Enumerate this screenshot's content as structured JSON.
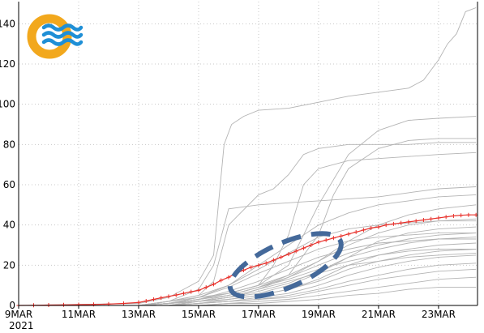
{
  "chart_data": {
    "type": "line",
    "title": "",
    "xlabel": "",
    "ylabel": "",
    "x_tick_labels": [
      "9MAR",
      "11MAR",
      "13MAR",
      "15MAR",
      "17MAR",
      "19MAR",
      "21MAR",
      "23MAR"
    ],
    "x_tick_days": [
      9,
      11,
      13,
      15,
      17,
      19,
      21,
      23
    ],
    "year_label": "2021",
    "xlim": [
      9,
      24.3
    ],
    "y_tick_labels": [
      "0",
      "20",
      "40",
      "60",
      "80",
      "100",
      "120",
      "140"
    ],
    "y_tick_values": [
      0,
      20,
      40,
      60,
      80,
      100,
      120,
      140
    ],
    "ylim": [
      0,
      151
    ],
    "grid": true,
    "series_color_mean": "#e8302a",
    "series_color_members": "#b4b4b4",
    "annotation_color": "#44699a",
    "logo_colors": {
      "ring": "#f2a81d",
      "waves": "#1f8fd6"
    },
    "mean": {
      "x": [
        9,
        9.5,
        10,
        10.5,
        11,
        11.5,
        12,
        12.5,
        13,
        13.25,
        13.5,
        13.75,
        14,
        14.25,
        14.5,
        14.75,
        15,
        15.25,
        15.5,
        15.75,
        16,
        16.25,
        16.5,
        16.75,
        17,
        17.25,
        17.5,
        17.75,
        18,
        18.25,
        18.5,
        18.75,
        19,
        19.25,
        19.5,
        19.75,
        20,
        20.25,
        20.5,
        20.75,
        21,
        21.25,
        21.5,
        21.75,
        22,
        22.25,
        22.5,
        22.75,
        23,
        23.25,
        23.5,
        23.75,
        24,
        24.25
      ],
      "y": [
        0,
        0.1,
        0.2,
        0.3,
        0.4,
        0.5,
        0.7,
        1.0,
        1.5,
        2.2,
        3.0,
        3.8,
        4.5,
        5.2,
        6.0,
        6.8,
        7.5,
        9.0,
        10.5,
        12.5,
        14.0,
        16.0,
        17.5,
        19.0,
        20.0,
        21.0,
        22.5,
        24.0,
        25.5,
        27.0,
        28.5,
        30.0,
        31.5,
        32.5,
        33.5,
        34.5,
        35.5,
        36.5,
        37.5,
        38.5,
        39.0,
        40.0,
        40.5,
        41.0,
        41.5,
        42.0,
        42.5,
        43.0,
        43.5,
        44.0,
        44.5,
        44.8,
        45.0,
        45.0
      ]
    },
    "members": [
      {
        "x": [
          9,
          13,
          14,
          15,
          15.5,
          15.85,
          16.1,
          16.5,
          17,
          18,
          19,
          20,
          21,
          22,
          22.5,
          22.8,
          23,
          23.3,
          23.6,
          23.9,
          24.25
        ],
        "y": [
          0,
          1,
          4,
          12,
          25,
          80,
          90,
          94,
          97,
          98,
          101,
          104,
          106,
          108,
          112,
          118,
          122,
          130,
          135,
          146,
          148
        ]
      },
      {
        "x": [
          9,
          13,
          14,
          15,
          16,
          17,
          18,
          19,
          20,
          21,
          22,
          23,
          24.25
        ],
        "y": [
          0,
          0,
          2,
          4,
          6,
          10,
          20,
          50,
          75,
          87,
          92,
          93,
          94
        ]
      },
      {
        "x": [
          9,
          13,
          14,
          15,
          16,
          17,
          18,
          19,
          19.5,
          20,
          21,
          22,
          23,
          24.25
        ],
        "y": [
          0,
          0,
          1,
          3,
          5,
          9,
          15,
          35,
          55,
          68,
          78,
          82,
          83,
          83
        ]
      },
      {
        "x": [
          9,
          13,
          14,
          15,
          15.5,
          16,
          17,
          17.5,
          18,
          18.5,
          19,
          20,
          21,
          22,
          23,
          24.25
        ],
        "y": [
          0,
          0,
          2,
          5,
          12,
          40,
          55,
          58,
          65,
          75,
          78,
          80,
          80,
          80,
          81,
          81
        ]
      },
      {
        "x": [
          9,
          13,
          14,
          15,
          16,
          17,
          17.5,
          18,
          18.5,
          19,
          20,
          21,
          22,
          23,
          24.25
        ],
        "y": [
          0,
          0,
          1,
          3,
          6,
          10,
          20,
          35,
          60,
          68,
          72,
          73,
          74,
          75,
          76
        ]
      },
      {
        "x": [
          9,
          13,
          14,
          15,
          15.5,
          16,
          17,
          18,
          19,
          20,
          21,
          22,
          23,
          24.25
        ],
        "y": [
          0,
          0,
          2,
          8,
          20,
          48,
          50,
          51,
          52,
          53,
          54,
          56,
          58,
          59
        ]
      },
      {
        "x": [
          9,
          13,
          14,
          15,
          16,
          17,
          18,
          19,
          20,
          21,
          22,
          23,
          24.25
        ],
        "y": [
          0,
          0,
          1,
          4,
          10,
          20,
          30,
          40,
          46,
          50,
          52,
          54,
          55
        ]
      },
      {
        "x": [
          9,
          13,
          14,
          15,
          16,
          17,
          18,
          19,
          20,
          21,
          22,
          23,
          24.25
        ],
        "y": [
          0,
          0,
          1,
          3,
          6,
          10,
          15,
          22,
          32,
          40,
          45,
          48,
          50
        ]
      },
      {
        "x": [
          9,
          13,
          14,
          15,
          16,
          17,
          18,
          19,
          20,
          21,
          22,
          23,
          24.25
        ],
        "y": [
          0,
          0,
          1,
          2,
          4,
          8,
          14,
          22,
          30,
          36,
          40,
          42,
          43
        ]
      },
      {
        "x": [
          9,
          13,
          14,
          15,
          16,
          17,
          18,
          19,
          20,
          21,
          22,
          23,
          24.25
        ],
        "y": [
          0,
          0,
          1,
          2,
          4,
          6,
          10,
          16,
          24,
          32,
          36,
          38,
          39
        ]
      },
      {
        "x": [
          9,
          13,
          14,
          15,
          16,
          17,
          18,
          19,
          20,
          21,
          22,
          23,
          24.25
        ],
        "y": [
          0,
          0,
          1,
          3,
          5,
          9,
          14,
          20,
          26,
          30,
          33,
          35,
          36
        ]
      },
      {
        "x": [
          9,
          13,
          14,
          15,
          16,
          17,
          18,
          19,
          20,
          21,
          22,
          23,
          24.25
        ],
        "y": [
          0,
          0,
          0,
          2,
          4,
          7,
          11,
          17,
          24,
          28,
          31,
          33,
          34
        ]
      },
      {
        "x": [
          9,
          13,
          14,
          15,
          16,
          17,
          18,
          19,
          20,
          21,
          22,
          23,
          24.25
        ],
        "y": [
          0,
          0,
          1,
          2,
          3,
          5,
          8,
          13,
          20,
          25,
          28,
          30,
          31
        ]
      },
      {
        "x": [
          9,
          13,
          14,
          15,
          16,
          17,
          18,
          19,
          20,
          21,
          22,
          23,
          24.25
        ],
        "y": [
          0,
          0,
          0,
          1,
          3,
          5,
          8,
          12,
          18,
          22,
          25,
          27,
          28
        ]
      },
      {
        "x": [
          9,
          13,
          14,
          15,
          16,
          17,
          18,
          19,
          20,
          21,
          22,
          23,
          24.25
        ],
        "y": [
          0,
          0,
          0,
          1,
          2,
          4,
          6,
          10,
          15,
          19,
          22,
          24,
          25
        ]
      },
      {
        "x": [
          9,
          13,
          14,
          15,
          16,
          17,
          18,
          19,
          20,
          21,
          22,
          23,
          24.25
        ],
        "y": [
          0,
          0,
          0,
          1,
          2,
          3,
          5,
          8,
          12,
          15,
          18,
          20,
          21
        ]
      },
      {
        "x": [
          9,
          13,
          14,
          15,
          16,
          17,
          18,
          19,
          20,
          21,
          22,
          23,
          24.25
        ],
        "y": [
          0,
          0,
          0,
          1,
          2,
          3,
          4,
          7,
          10,
          13,
          15,
          17,
          18
        ]
      },
      {
        "x": [
          9,
          13,
          14,
          15,
          16,
          17,
          18,
          19,
          20,
          21,
          22,
          23,
          24.25
        ],
        "y": [
          0,
          0,
          0,
          0,
          1,
          2,
          3,
          5,
          7,
          9,
          11,
          13,
          14
        ]
      },
      {
        "x": [
          9,
          13,
          14,
          15,
          16,
          17,
          18,
          19,
          20,
          21,
          22,
          23,
          24.25
        ],
        "y": [
          0,
          0,
          0,
          0,
          1,
          1,
          2,
          3,
          5,
          6,
          8,
          9,
          9
        ]
      },
      {
        "x": [
          9,
          13,
          14,
          15,
          16,
          17,
          18,
          19,
          20,
          21,
          22,
          23,
          24.25
        ],
        "y": [
          0,
          0,
          1,
          4,
          9,
          16,
          22,
          28,
          32,
          34,
          35,
          36,
          36
        ]
      },
      {
        "x": [
          9,
          13,
          14,
          15,
          16,
          17,
          18,
          19,
          20,
          21,
          22,
          23,
          24.25
        ],
        "y": [
          0,
          0,
          2,
          5,
          10,
          18,
          26,
          34,
          38,
          40,
          41,
          42,
          42
        ]
      },
      {
        "x": [
          9,
          13,
          14,
          15,
          16,
          17,
          18,
          19,
          20,
          21,
          22,
          23,
          24.25
        ],
        "y": [
          0,
          0,
          1,
          3,
          7,
          12,
          18,
          24,
          28,
          31,
          32,
          33,
          33
        ]
      },
      {
        "x": [
          9,
          13,
          14,
          15,
          16,
          17,
          18,
          19,
          20,
          21,
          22,
          23,
          24.25
        ],
        "y": [
          0,
          0,
          1,
          2,
          5,
          9,
          13,
          18,
          22,
          25,
          27,
          28,
          28
        ]
      },
      {
        "x": [
          9,
          13,
          14,
          15,
          16,
          17,
          18,
          19,
          20,
          21,
          22,
          23,
          24.25
        ],
        "y": [
          0,
          0,
          0,
          2,
          4,
          8,
          12,
          16,
          20,
          22,
          24,
          25,
          26
        ]
      }
    ],
    "annotation": {
      "type": "dashed-ellipse",
      "center_day": 17.9,
      "center_value": 20,
      "radius_days": 2.0,
      "radius_value": 11,
      "rotation_deg": -24
    }
  }
}
